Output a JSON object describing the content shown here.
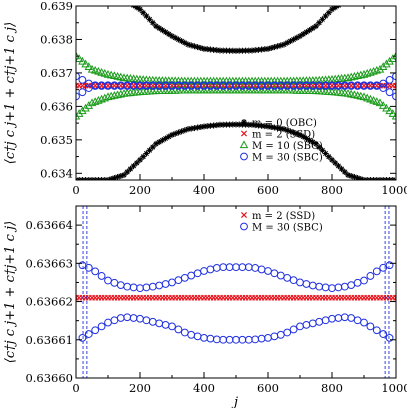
{
  "chart_data": [
    {
      "type": "scatter",
      "ylabel": "⟨c†j c j+1 + c†j+1 c j⟩",
      "xlim": [
        0,
        1000
      ],
      "ylim": [
        0.6338,
        0.639
      ],
      "xticks": [
        "0",
        "200",
        "400",
        "600",
        "800",
        "1000"
      ],
      "yticks": [
        "0.634",
        "0.635",
        "0.636",
        "0.637",
        "0.638",
        "0.639"
      ],
      "legend_position": "lower-right",
      "series": [
        {
          "name": "m = 0 (OBC)",
          "marker": "star",
          "color": "#000000",
          "x": [
            0,
            50,
            100,
            150,
            200,
            250,
            300,
            350,
            400,
            450,
            500,
            550,
            600,
            650,
            700,
            750,
            800,
            850,
            900,
            950,
            1000
          ],
          "y_upper": [
            0.6392,
            0.6392,
            0.6392,
            0.6392,
            0.6389,
            0.6384,
            0.6381,
            0.63785,
            0.63772,
            0.63767,
            0.63766,
            0.63767,
            0.63772,
            0.63785,
            0.6381,
            0.6384,
            0.6389,
            0.6392,
            0.6392,
            0.6392,
            0.6392
          ],
          "y_lower": [
            0.6338,
            0.6338,
            0.6338,
            0.63395,
            0.6344,
            0.63488,
            0.63515,
            0.63532,
            0.6354,
            0.63545,
            0.63546,
            0.63545,
            0.6354,
            0.63532,
            0.63515,
            0.63488,
            0.6344,
            0.63395,
            0.6338,
            0.6338,
            0.6338
          ]
        },
        {
          "name": "m = 2 (SSD)",
          "marker": "x",
          "color": "#e8141c",
          "x": [
            0,
            50,
            100,
            150,
            200,
            250,
            300,
            350,
            400,
            450,
            500,
            550,
            600,
            650,
            700,
            750,
            800,
            850,
            900,
            950,
            1000
          ],
          "y": [
            0.63662,
            0.63662,
            0.63662,
            0.63662,
            0.63662,
            0.63662,
            0.63662,
            0.63662,
            0.63662,
            0.63662,
            0.63662,
            0.63662,
            0.63662,
            0.63662,
            0.63662,
            0.63662,
            0.63662,
            0.63662,
            0.63662,
            0.63662,
            0.63662
          ]
        },
        {
          "name": "M = 10 (SBC)",
          "marker": "triangle",
          "color": "#1a9b1a",
          "x": [
            0,
            50,
            100,
            150,
            200,
            250,
            300,
            350,
            400,
            450,
            500,
            550,
            600,
            650,
            700,
            750,
            800,
            850,
            900,
            950,
            1000
          ],
          "y_upper": [
            0.6375,
            0.6371,
            0.63695,
            0.63685,
            0.6368,
            0.63677,
            0.63676,
            0.63675,
            0.63675,
            0.63675,
            0.63675,
            0.63675,
            0.63675,
            0.63675,
            0.63676,
            0.63677,
            0.6368,
            0.63685,
            0.63695,
            0.6371,
            0.6375
          ],
          "y_lower": [
            0.6357,
            0.6361,
            0.63628,
            0.63638,
            0.63643,
            0.63646,
            0.63647,
            0.63648,
            0.63648,
            0.63648,
            0.63648,
            0.63648,
            0.63648,
            0.63648,
            0.63647,
            0.63646,
            0.63643,
            0.63638,
            0.63628,
            0.6361,
            0.6357
          ]
        },
        {
          "name": "M = 30 (SBC)",
          "marker": "circle",
          "color": "#2030e0",
          "x": [
            0,
            50,
            100,
            150,
            200,
            250,
            300,
            350,
            400,
            450,
            500,
            550,
            600,
            650,
            700,
            750,
            800,
            850,
            900,
            950,
            1000
          ],
          "y_upper": [
            0.6369,
            0.63663,
            0.63663,
            0.63663,
            0.63663,
            0.63663,
            0.63663,
            0.63663,
            0.63663,
            0.63663,
            0.63663,
            0.63663,
            0.63663,
            0.63663,
            0.63663,
            0.63663,
            0.63663,
            0.63663,
            0.63663,
            0.63663,
            0.6369
          ],
          "y_lower": [
            0.6363,
            0.63661,
            0.63661,
            0.63661,
            0.63661,
            0.63661,
            0.63661,
            0.63661,
            0.63661,
            0.63661,
            0.63661,
            0.63661,
            0.63661,
            0.63661,
            0.63661,
            0.63661,
            0.63661,
            0.63661,
            0.63661,
            0.63661,
            0.6363
          ]
        }
      ]
    },
    {
      "type": "scatter",
      "xlabel": "j",
      "ylabel": "⟨c†j c j+1 + c†j+1 c j⟩",
      "xlim": [
        0,
        1000
      ],
      "ylim": [
        0.6366,
        0.636645
      ],
      "xticks": [
        "0",
        "200",
        "400",
        "600",
        "800",
        "1000"
      ],
      "yticks": [
        "0.63660",
        "0.63661",
        "0.63662",
        "0.63663",
        "0.63664"
      ],
      "legend_position": "top-right",
      "series": [
        {
          "name": "m = 2 (SSD)",
          "marker": "x",
          "color": "#e8141c",
          "x": [
            0,
            50,
            100,
            150,
            200,
            250,
            300,
            350,
            400,
            450,
            500,
            550,
            600,
            650,
            700,
            750,
            800,
            850,
            900,
            950,
            1000
          ],
          "y": [
            0.636621,
            0.636621,
            0.636621,
            0.636621,
            0.636621,
            0.636621,
            0.636621,
            0.636621,
            0.636621,
            0.636621,
            0.636621,
            0.636621,
            0.636621,
            0.636621,
            0.636621,
            0.636621,
            0.636621,
            0.636621,
            0.636621,
            0.636621,
            0.636621
          ]
        },
        {
          "name": "M = 30 (SBC)",
          "marker": "circle",
          "color": "#2030e0",
          "x": [
            20,
            50,
            100,
            150,
            200,
            250,
            300,
            350,
            400,
            450,
            500,
            550,
            600,
            650,
            700,
            750,
            800,
            850,
            900,
            950,
            980
          ],
          "y_upper": [
            0.6366295,
            0.6366285,
            0.6366255,
            0.636624,
            0.6366235,
            0.636624,
            0.636625,
            0.6366265,
            0.636628,
            0.636629,
            0.636629,
            0.636629,
            0.636628,
            0.6366265,
            0.636625,
            0.636624,
            0.6366235,
            0.636624,
            0.6366255,
            0.6366285,
            0.6366295
          ],
          "y_lower": [
            0.6366105,
            0.636612,
            0.6366145,
            0.636616,
            0.6366155,
            0.6366145,
            0.6366135,
            0.6366115,
            0.6366105,
            0.63661,
            0.63661,
            0.63661,
            0.6366105,
            0.6366115,
            0.6366135,
            0.6366145,
            0.6366155,
            0.636616,
            0.6366145,
            0.636612,
            0.6366105
          ]
        }
      ]
    }
  ]
}
